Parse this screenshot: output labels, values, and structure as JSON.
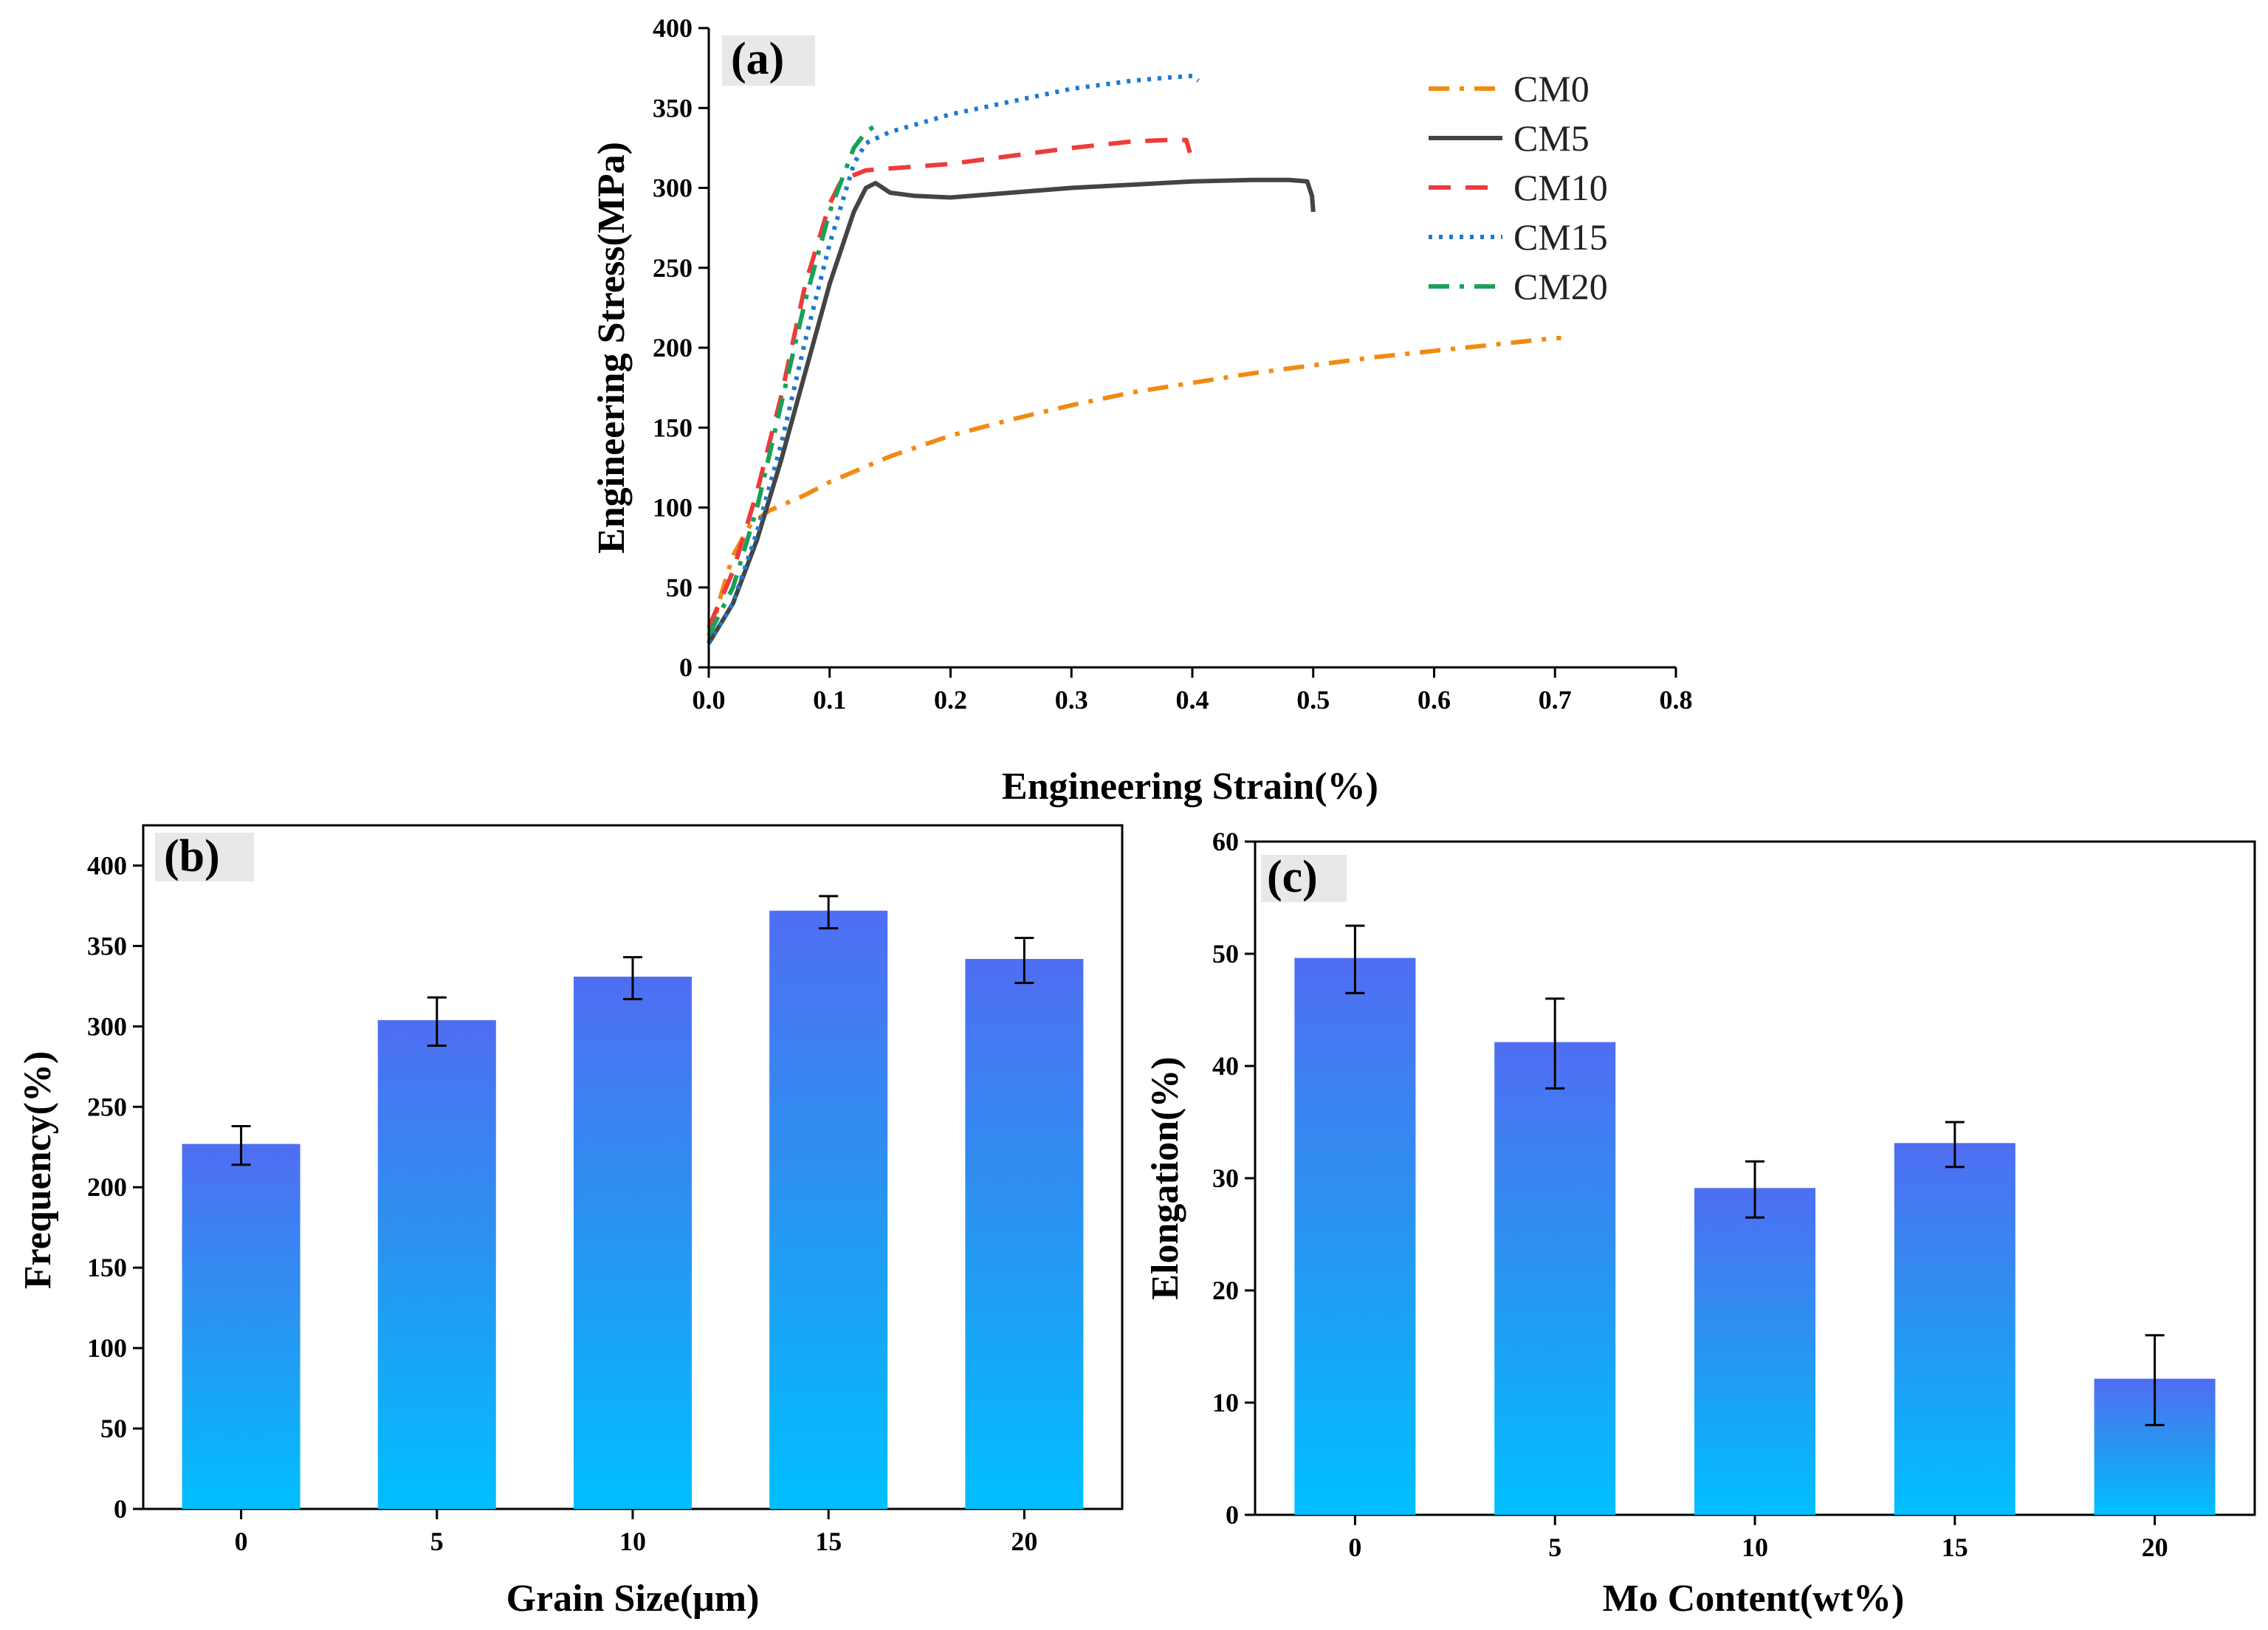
{
  "colors": {
    "CM0": "#f28a12",
    "CM5": "#444444",
    "CM10": "#ee3b3b",
    "CM15": "#1f78d1",
    "CM20": "#18a15a",
    "bar_top": "#4f6ef2",
    "bar_bottom": "#00bfff",
    "tag_bg": "#e8e8e8"
  },
  "chart_data": [
    {
      "panel": "(a)",
      "type": "line",
      "xlabel": "Engineering Strain(%)",
      "ylabel": "Engineering Stress(MPa)",
      "xlim": [
        0,
        0.8
      ],
      "ylim": [
        0,
        400
      ],
      "xticks": [
        "0.0",
        "0.1",
        "0.2",
        "0.3",
        "0.4",
        "0.5",
        "0.6",
        "0.7",
        "0.8"
      ],
      "yticks": [
        "0",
        "50",
        "100",
        "150",
        "200",
        "250",
        "300",
        "350",
        "400"
      ],
      "legend_position": "top-right",
      "series": [
        {
          "name": "CM0",
          "style": "dash-dot",
          "points": [
            [
              0,
              15
            ],
            [
              0.01,
              45
            ],
            [
              0.02,
              70
            ],
            [
              0.035,
              90
            ],
            [
              0.05,
              98
            ],
            [
              0.08,
              108
            ],
            [
              0.1,
              116
            ],
            [
              0.15,
              132
            ],
            [
              0.2,
              145
            ],
            [
              0.25,
              155
            ],
            [
              0.3,
              164
            ],
            [
              0.35,
              172
            ],
            [
              0.4,
              178
            ],
            [
              0.45,
              184
            ],
            [
              0.5,
              189
            ],
            [
              0.55,
              194
            ],
            [
              0.6,
              198
            ],
            [
              0.65,
              202
            ],
            [
              0.7,
              206
            ],
            [
              0.705,
              206
            ]
          ]
        },
        {
          "name": "CM5",
          "style": "solid",
          "points": [
            [
              0,
              15
            ],
            [
              0.02,
              40
            ],
            [
              0.04,
              80
            ],
            [
              0.06,
              130
            ],
            [
              0.08,
              185
            ],
            [
              0.1,
              240
            ],
            [
              0.12,
              285
            ],
            [
              0.13,
              300
            ],
            [
              0.138,
              303
            ],
            [
              0.15,
              297
            ],
            [
              0.17,
              295
            ],
            [
              0.2,
              294
            ],
            [
              0.25,
              297
            ],
            [
              0.3,
              300
            ],
            [
              0.35,
              302
            ],
            [
              0.4,
              304
            ],
            [
              0.45,
              305
            ],
            [
              0.48,
              305
            ],
            [
              0.495,
              304
            ],
            [
              0.499,
              295
            ],
            [
              0.5,
              285
            ]
          ]
        },
        {
          "name": "CM10",
          "style": "dashed",
          "points": [
            [
              0,
              25
            ],
            [
              0.02,
              60
            ],
            [
              0.04,
              110
            ],
            [
              0.06,
              170
            ],
            [
              0.08,
              240
            ],
            [
              0.1,
              290
            ],
            [
              0.11,
              305
            ],
            [
              0.13,
              311
            ],
            [
              0.2,
              315
            ],
            [
              0.25,
              320
            ],
            [
              0.3,
              325
            ],
            [
              0.35,
              329
            ],
            [
              0.38,
              330
            ],
            [
              0.395,
              330
            ],
            [
              0.398,
              322
            ]
          ]
        },
        {
          "name": "CM15",
          "style": "dotted",
          "points": [
            [
              0,
              15
            ],
            [
              0.02,
              40
            ],
            [
              0.04,
              85
            ],
            [
              0.06,
              140
            ],
            [
              0.08,
              205
            ],
            [
              0.1,
              265
            ],
            [
              0.12,
              315
            ],
            [
              0.13,
              328
            ],
            [
              0.15,
              335
            ],
            [
              0.2,
              346
            ],
            [
              0.25,
              354
            ],
            [
              0.3,
              362
            ],
            [
              0.35,
              367
            ],
            [
              0.38,
              369
            ],
            [
              0.4,
              370
            ],
            [
              0.405,
              367
            ]
          ]
        },
        {
          "name": "CM20",
          "style": "dash-dot",
          "points": [
            [
              0,
              20
            ],
            [
              0.02,
              50
            ],
            [
              0.04,
              100
            ],
            [
              0.06,
              165
            ],
            [
              0.08,
              230
            ],
            [
              0.1,
              285
            ],
            [
              0.12,
              325
            ],
            [
              0.13,
              335
            ],
            [
              0.14,
              340
            ],
            [
              0.142,
              341
            ]
          ]
        }
      ]
    },
    {
      "panel": "(b)",
      "type": "bar",
      "xlabel": "Grain Size(μm)",
      "ylabel": "Frequency(%)",
      "categories": [
        "0",
        "5",
        "10",
        "15",
        "20"
      ],
      "values": [
        226,
        303,
        330,
        371,
        341
      ],
      "errors": [
        12,
        15,
        13,
        10,
        14
      ],
      "ylim": [
        0,
        425
      ],
      "yticks": [
        "0",
        "50",
        "100",
        "150",
        "200",
        "250",
        "300",
        "350",
        "400"
      ]
    },
    {
      "panel": "(c)",
      "type": "bar",
      "xlabel": "Mo Content(wt%)",
      "ylabel": "Elongation(%)",
      "categories": [
        "0",
        "5",
        "10",
        "15",
        "20"
      ],
      "values": [
        49.5,
        42,
        29,
        33,
        12
      ],
      "errors": [
        3,
        4,
        2.5,
        2,
        4
      ],
      "ylim": [
        0,
        60
      ],
      "yticks": [
        "0",
        "10",
        "20",
        "30",
        "40",
        "50",
        "60"
      ]
    }
  ]
}
